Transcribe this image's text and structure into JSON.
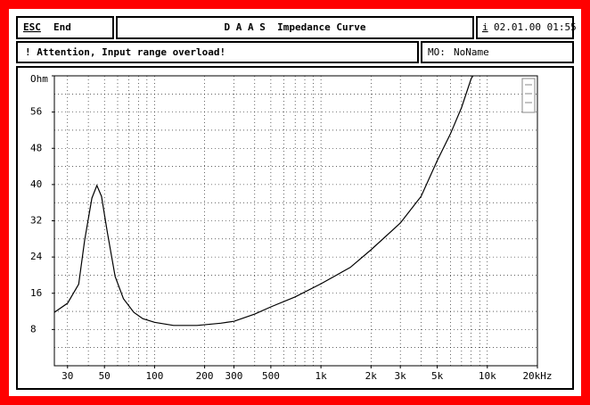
{
  "header": {
    "escape": "ESC",
    "end": "End",
    "title": "D A A S  Impedance Curve",
    "info_key": "i",
    "datetime": "02.01.00 01:55"
  },
  "status": {
    "message": "! Attention, Input range overload!",
    "memory_key": "MO:",
    "memory_name": "NoName"
  },
  "chart_data": {
    "type": "line",
    "log_x": true,
    "grid": true,
    "color": "#000000",
    "x": [
      25,
      30,
      35,
      38,
      42,
      45,
      48,
      52,
      58,
      65,
      75,
      85,
      100,
      130,
      180,
      250,
      300,
      400,
      500,
      700,
      1000,
      1500,
      2000,
      3000,
      4000,
      5000,
      6000,
      7000,
      8000,
      8200
    ],
    "values": [
      11.8,
      13.8,
      18,
      27.6,
      37,
      39.8,
      37.4,
      29.5,
      19.7,
      14.8,
      11.8,
      10.4,
      9.6,
      8.9,
      8.9,
      9.4,
      9.8,
      11.4,
      13,
      15.2,
      18.1,
      21.7,
      25.6,
      31.5,
      37.4,
      45.3,
      51.2,
      57,
      63.4,
      64
    ],
    "xlim": [
      25,
      20000
    ],
    "xticks": [
      30,
      50,
      100,
      200,
      300,
      500,
      {
        "value": 1000,
        "label": "1k"
      },
      {
        "value": 2000,
        "label": "2k"
      },
      {
        "value": 3000,
        "label": "3k"
      },
      {
        "value": 5000,
        "label": "5k"
      },
      {
        "value": 10000,
        "label": "10k"
      },
      {
        "value": 20000,
        "label": "20kHz"
      }
    ],
    "xminor": [
      30,
      40,
      50,
      60,
      70,
      80,
      90,
      100,
      200,
      300,
      400,
      500,
      600,
      700,
      800,
      900,
      1000,
      2000,
      3000,
      4000,
      5000,
      6000,
      7000,
      8000,
      9000,
      10000
    ],
    "ylim": [
      0,
      64
    ],
    "yticks": [
      8,
      16,
      24,
      32,
      40,
      48,
      56,
      {
        "value": 64,
        "label": "Ohm"
      }
    ],
    "yminor": [
      4,
      8,
      12,
      16,
      20,
      24,
      28,
      32,
      36,
      40,
      44,
      48,
      52,
      56,
      60
    ]
  }
}
